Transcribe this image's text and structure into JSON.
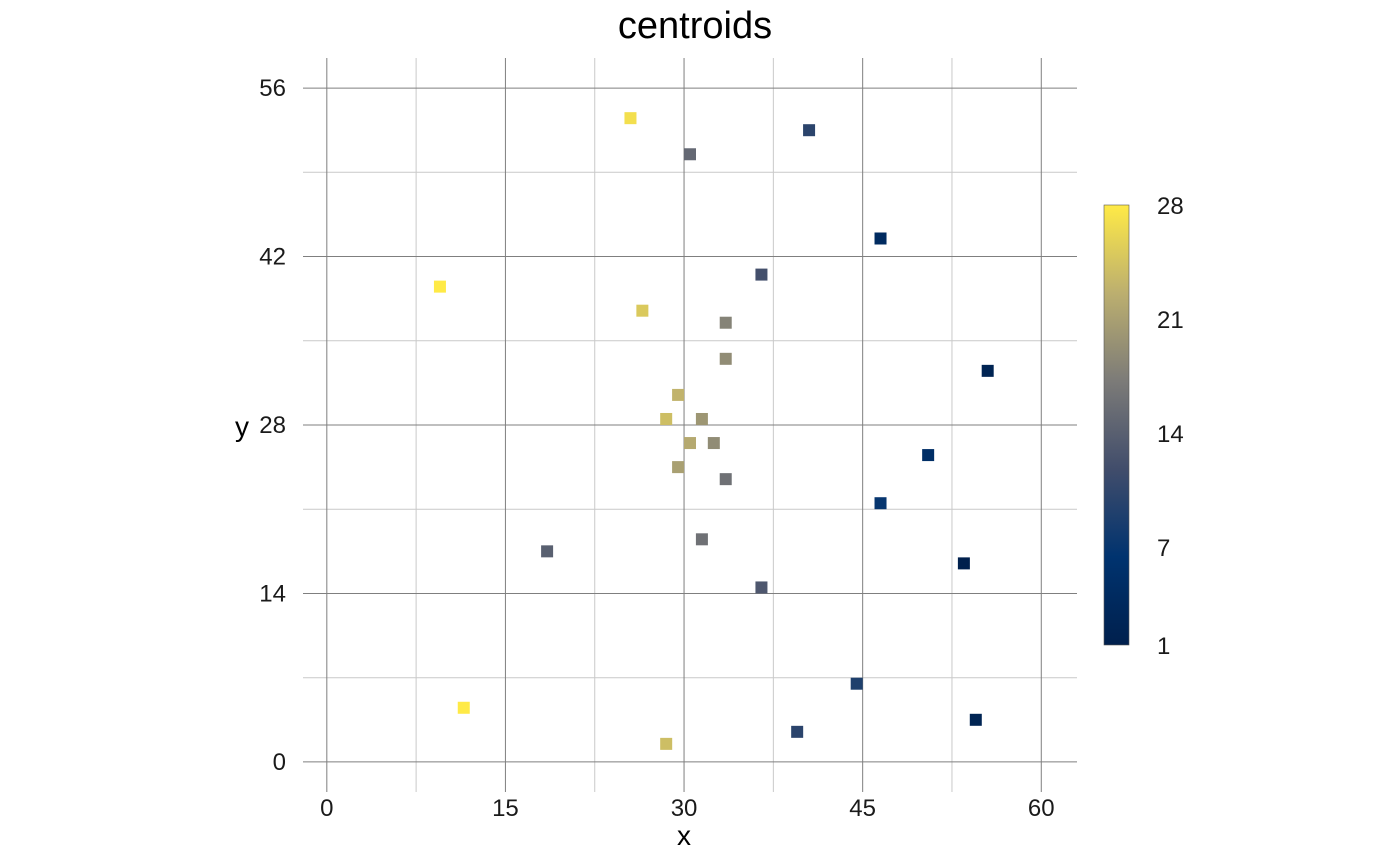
{
  "chart_data": {
    "type": "scatter",
    "title": "centroids",
    "xlabel": "x",
    "ylabel": "y",
    "xlim": [
      -2,
      63
    ],
    "ylim": [
      -2.5,
      58.5
    ],
    "xticks": [
      0,
      15,
      30,
      45,
      60
    ],
    "yticks": [
      0,
      14,
      28,
      42,
      56
    ],
    "grid": true,
    "legend": {
      "placement": "right",
      "type": "colorbar",
      "min": 1,
      "max": 28,
      "ticks": [
        1,
        7,
        14,
        21,
        28
      ],
      "colors": [
        "#00204d",
        "#00336f",
        "#414d6b",
        "#7c7b78",
        "#bcaf6f",
        "#ffea46"
      ]
    },
    "marker": "square",
    "points": [
      {
        "x": 25.5,
        "y": 53.5,
        "value": 27
      },
      {
        "x": 40.5,
        "y": 52.5,
        "value": 10
      },
      {
        "x": 30.5,
        "y": 50.5,
        "value": 15
      },
      {
        "x": 46.5,
        "y": 43.5,
        "value": 4
      },
      {
        "x": 36.5,
        "y": 40.5,
        "value": 12
      },
      {
        "x": 9.5,
        "y": 39.5,
        "value": 28
      },
      {
        "x": 26.5,
        "y": 37.5,
        "value": 25
      },
      {
        "x": 33.5,
        "y": 36.5,
        "value": 18
      },
      {
        "x": 33.5,
        "y": 33.5,
        "value": 19
      },
      {
        "x": 55.5,
        "y": 32.5,
        "value": 2
      },
      {
        "x": 29.5,
        "y": 30.5,
        "value": 23
      },
      {
        "x": 28.5,
        "y": 28.5,
        "value": 24
      },
      {
        "x": 31.5,
        "y": 28.5,
        "value": 20
      },
      {
        "x": 30.5,
        "y": 26.5,
        "value": 22
      },
      {
        "x": 32.5,
        "y": 26.5,
        "value": 19
      },
      {
        "x": 50.5,
        "y": 25.5,
        "value": 5
      },
      {
        "x": 29.5,
        "y": 24.5,
        "value": 21
      },
      {
        "x": 33.5,
        "y": 23.5,
        "value": 16
      },
      {
        "x": 46.5,
        "y": 21.5,
        "value": 7
      },
      {
        "x": 31.5,
        "y": 18.5,
        "value": 16
      },
      {
        "x": 18.5,
        "y": 17.5,
        "value": 14
      },
      {
        "x": 53.5,
        "y": 16.5,
        "value": 1
      },
      {
        "x": 36.5,
        "y": 14.5,
        "value": 13
      },
      {
        "x": 44.5,
        "y": 6.5,
        "value": 9
      },
      {
        "x": 11.5,
        "y": 4.5,
        "value": 28
      },
      {
        "x": 54.5,
        "y": 3.5,
        "value": 2
      },
      {
        "x": 39.5,
        "y": 2.5,
        "value": 10
      },
      {
        "x": 28.5,
        "y": 1.5,
        "value": 24
      }
    ]
  }
}
